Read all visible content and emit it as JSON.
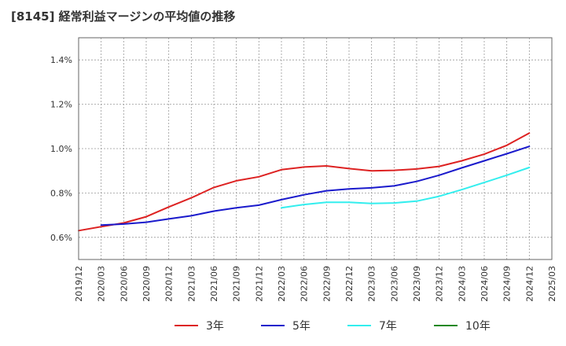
{
  "chart_data": {
    "type": "line",
    "title": "[8145]  経常利益マージンの平均値の推移",
    "xlabel": "",
    "ylabel": "",
    "x_ticks": [
      "2019/12",
      "2020/03",
      "2020/06",
      "2020/09",
      "2020/12",
      "2021/03",
      "2021/06",
      "2021/09",
      "2021/12",
      "2022/03",
      "2022/06",
      "2022/09",
      "2022/12",
      "2023/03",
      "2023/06",
      "2023/09",
      "2023/12",
      "2024/03",
      "2024/06",
      "2024/09",
      "2024/12",
      "2025/03"
    ],
    "y_ticks": [
      "0.6%",
      "0.8%",
      "1.0%",
      "1.2%",
      "1.4%"
    ],
    "y_tick_values": [
      0.6,
      0.8,
      1.0,
      1.2,
      1.4
    ],
    "ylim": [
      0.5,
      1.5
    ],
    "grid": true,
    "legend_position": "bottom",
    "series": [
      {
        "name": "3年",
        "color": "#dd2222",
        "x": [
          "2019/12",
          "2020/03",
          "2020/06",
          "2020/09",
          "2020/12",
          "2021/03",
          "2021/06",
          "2021/09",
          "2021/12",
          "2022/03",
          "2022/06",
          "2022/09",
          "2022/12",
          "2023/03",
          "2023/06",
          "2023/09",
          "2023/12",
          "2024/03",
          "2024/06",
          "2024/09",
          "2024/12"
        ],
        "values": [
          0.63,
          0.648,
          0.665,
          0.693,
          0.737,
          0.778,
          0.825,
          0.855,
          0.873,
          0.905,
          0.917,
          0.922,
          0.91,
          0.9,
          0.902,
          0.908,
          0.92,
          0.945,
          0.975,
          1.015,
          1.07
        ]
      },
      {
        "name": "5年",
        "color": "#1a1acc",
        "x": [
          "2020/03",
          "2020/06",
          "2020/09",
          "2020/12",
          "2021/03",
          "2021/06",
          "2021/09",
          "2021/12",
          "2022/03",
          "2022/06",
          "2022/09",
          "2022/12",
          "2023/03",
          "2023/06",
          "2023/09",
          "2023/12",
          "2024/03",
          "2024/06",
          "2024/09",
          "2024/12"
        ],
        "values": [
          0.655,
          0.66,
          0.668,
          0.683,
          0.697,
          0.718,
          0.733,
          0.745,
          0.77,
          0.792,
          0.81,
          0.818,
          0.823,
          0.832,
          0.852,
          0.88,
          0.913,
          0.945,
          0.977,
          1.01
        ]
      },
      {
        "name": "7年",
        "color": "#33eeee",
        "x": [
          "2022/03",
          "2022/06",
          "2022/09",
          "2022/12",
          "2023/03",
          "2023/06",
          "2023/09",
          "2023/12",
          "2024/03",
          "2024/06",
          "2024/09",
          "2024/12"
        ],
        "values": [
          0.733,
          0.748,
          0.758,
          0.758,
          0.753,
          0.755,
          0.763,
          0.785,
          0.815,
          0.847,
          0.88,
          0.915
        ]
      },
      {
        "name": "10年",
        "color": "#228822",
        "x": [],
        "values": []
      }
    ]
  }
}
